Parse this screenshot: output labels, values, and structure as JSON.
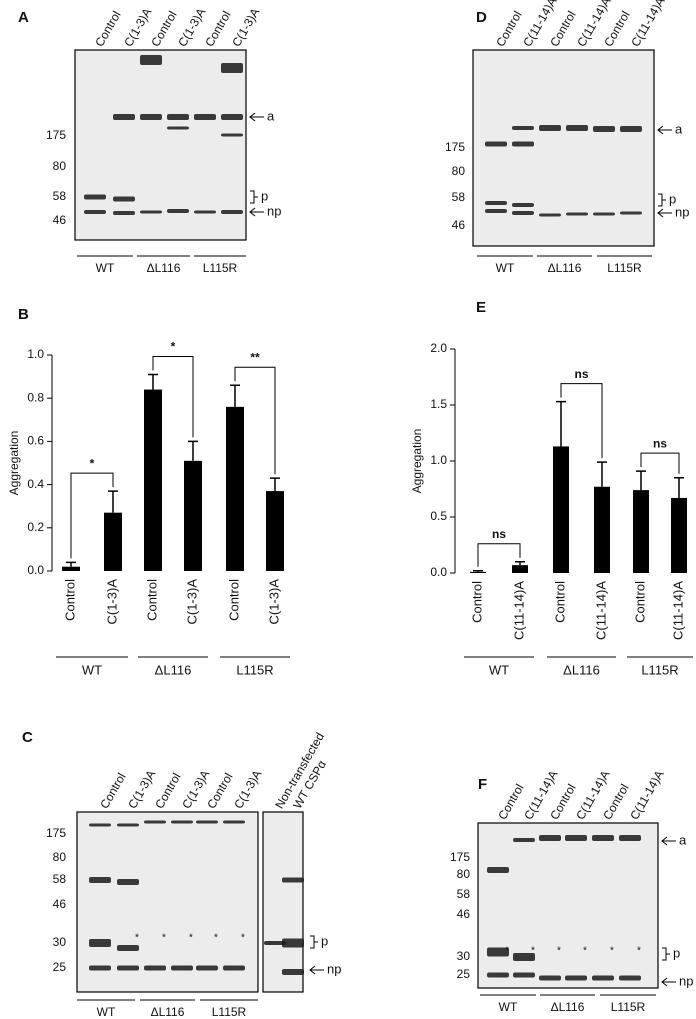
{
  "chart_data": [
    {
      "type": "bar",
      "panel_label": "B",
      "y_label": "Aggregation",
      "categories": [
        "Control",
        "C(1-3)A",
        "Control",
        "C(1-3)A",
        "Control",
        "C(1-3)A"
      ],
      "groups": [
        "WT",
        "ΔL116",
        "L115R"
      ],
      "values": [
        0.02,
        0.27,
        0.84,
        0.51,
        0.76,
        0.37
      ],
      "errors": [
        0.02,
        0.1,
        0.07,
        0.09,
        0.1,
        0.06
      ],
      "color": "#000000",
      "ylim": [
        0,
        1
      ],
      "yticks": [
        {
          "value": 0,
          "label": "0.0"
        },
        0.2,
        0.4,
        0.6,
        0.8,
        {
          "value": 1,
          "label": "1.0"
        }
      ],
      "annotations": [
        {
          "text": "*",
          "from": 0,
          "to": 1
        },
        {
          "text": "*",
          "from": 2,
          "to": 3
        },
        {
          "text": "**",
          "from": 4,
          "to": 5
        }
      ]
    },
    {
      "type": "bar",
      "panel_label": "E",
      "y_label": "Aggregation",
      "categories": [
        "Control",
        "C(11-14)A",
        "Control",
        "C(11-14)A",
        "Control",
        "C(11-14)A"
      ],
      "groups": [
        "WT",
        "ΔL116",
        "L115R"
      ],
      "values": [
        0.01,
        0.07,
        1.13,
        0.77,
        0.74,
        0.67
      ],
      "errors": [
        0.01,
        0.03,
        0.4,
        0.22,
        0.17,
        0.18
      ],
      "color": "#000000",
      "ylim": [
        0,
        2
      ],
      "yticks": [
        {
          "value": 0,
          "label": "0.0"
        },
        0.5,
        {
          "value": 1,
          "label": "1.0"
        },
        1.5,
        {
          "value": 2,
          "label": "2.0"
        }
      ],
      "annotations": [
        {
          "text": "ns",
          "from": 0,
          "to": 1
        },
        {
          "text": "ns",
          "from": 2,
          "to": 3
        },
        {
          "text": "ns",
          "from": 4,
          "to": 5
        }
      ]
    }
  ],
  "blots": [
    {
      "panel_label": "A",
      "lanes": [
        "Control",
        "C(1-3)A",
        "Control",
        "C(1-3)A",
        "Control",
        "C(1-3)A"
      ],
      "markers": [
        "175",
        "80",
        "58",
        "46"
      ],
      "arrows": [
        "a",
        "p",
        "np"
      ],
      "groups": [
        "WT",
        "ΔL116",
        "L115R"
      ]
    },
    {
      "panel_label": "D",
      "lanes": [
        "Control",
        "C(11-14)A",
        "Control",
        "C(11-14)A",
        "Control",
        "C(11-14)A"
      ],
      "markers": [
        "175",
        "80",
        "58",
        "46"
      ],
      "arrows": [
        "a",
        "p",
        "np"
      ],
      "groups": [
        "WT",
        "ΔL116",
        "L115R"
      ]
    },
    {
      "panel_label": "C",
      "lanes": [
        "Control",
        "C(1-3)A",
        "Control",
        "C(1-3)A",
        "Control",
        "C(1-3)A",
        "Non-transfected",
        "WT CSPα"
      ],
      "markers": [
        "175",
        "80",
        "58",
        "46",
        "30",
        "25"
      ],
      "arrows": [
        "p",
        "np"
      ],
      "groups": [
        "WT",
        "ΔL116",
        "L115R"
      ],
      "band_marks": [
        "*",
        "*",
        "*",
        "*",
        "*"
      ]
    },
    {
      "panel_label": "F",
      "lanes": [
        "Control",
        "C(11-14)A",
        "Control",
        "C(11-14)A",
        "Control",
        "C(11-14)A"
      ],
      "markers": [
        "175",
        "80",
        "58",
        "46",
        "30",
        "25"
      ],
      "arrows": [
        "a",
        "p",
        "np"
      ],
      "groups": [
        "WT",
        "ΔL116",
        "L115R"
      ],
      "band_marks": [
        "*",
        "*",
        "*",
        "*",
        "*",
        "*"
      ]
    }
  ]
}
